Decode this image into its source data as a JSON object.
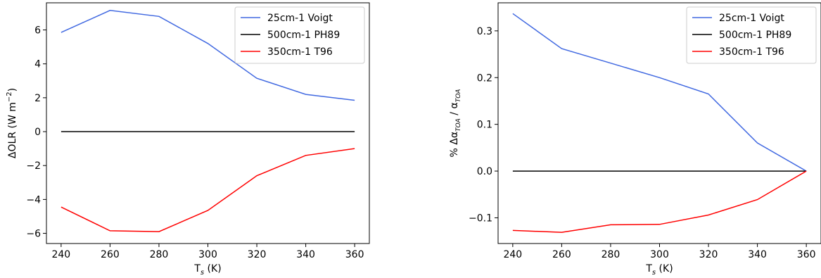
{
  "chart_data": [
    {
      "type": "line",
      "xlabel_main": "T",
      "xlabel_sub": "s",
      "xlabel_tail": " (K)",
      "ylabel_main": "ΔOLR (W m",
      "ylabel_sup": "−2",
      "ylabel_tail": ")",
      "xlim": [
        234,
        366
      ],
      "ylim": [
        -6.6,
        7.6
      ],
      "xticks": [
        240,
        260,
        280,
        300,
        320,
        340,
        360
      ],
      "xtick_labels": [
        "240",
        "260",
        "280",
        "300",
        "320",
        "340",
        "360"
      ],
      "yticks": [
        -6,
        -4,
        -2,
        0,
        2,
        4,
        6
      ],
      "ytick_labels": [
        "−6",
        "−4",
        "−2",
        "0",
        "2",
        "4",
        "6"
      ],
      "legend_position": "top-right",
      "x": [
        240,
        260,
        280,
        300,
        320,
        340,
        360
      ],
      "series": [
        {
          "name": "25cm-1 Voigt",
          "color": "#4169E1",
          "values": [
            5.85,
            7.15,
            6.8,
            5.2,
            3.15,
            2.2,
            1.85
          ]
        },
        {
          "name": "500cm-1 PH89",
          "color": "#000000",
          "values": [
            0,
            0,
            0,
            0,
            0,
            0,
            0
          ]
        },
        {
          "name": "350cm-1 T96",
          "color": "#FF0000",
          "values": [
            -4.45,
            -5.85,
            -5.9,
            -4.65,
            -2.6,
            -1.4,
            -1.0
          ]
        }
      ]
    },
    {
      "type": "line",
      "xlabel_main": "T",
      "xlabel_sub": "s",
      "xlabel_tail": " (K)",
      "ylabel_pre": "% Δα",
      "ylabel_sub1": "TOA",
      "ylabel_mid": " / α",
      "ylabel_sub2": "TOA",
      "xlim": [
        234,
        366
      ],
      "ylim": [
        -0.155,
        0.36
      ],
      "xticks": [
        240,
        260,
        280,
        300,
        320,
        340,
        360
      ],
      "xtick_labels": [
        "240",
        "260",
        "280",
        "300",
        "320",
        "340",
        "360"
      ],
      "yticks": [
        -0.1,
        0.0,
        0.1,
        0.2,
        0.3
      ],
      "ytick_labels": [
        "−0.1",
        "0.0",
        "0.1",
        "0.2",
        "0.3"
      ],
      "legend_position": "top-right",
      "x": [
        240,
        260,
        280,
        300,
        320,
        340,
        360
      ],
      "series": [
        {
          "name": "25cm-1 Voigt",
          "color": "#4169E1",
          "values": [
            0.337,
            0.262,
            0.231,
            0.2,
            0.165,
            0.06,
            0.0
          ]
        },
        {
          "name": "500cm-1 PH89",
          "color": "#000000",
          "values": [
            0,
            0,
            0,
            0,
            0,
            0,
            0
          ]
        },
        {
          "name": "350cm-1 T96",
          "color": "#FF0000",
          "values": [
            -0.127,
            -0.131,
            -0.115,
            -0.114,
            -0.094,
            -0.061,
            0.0
          ]
        }
      ]
    }
  ]
}
